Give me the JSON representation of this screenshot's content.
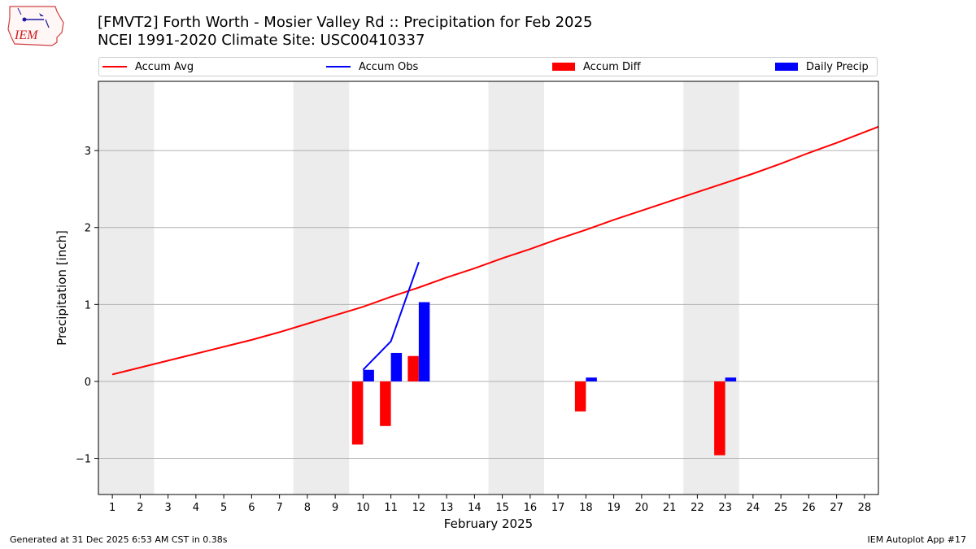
{
  "header": {
    "title_line1": "[FMVT2] Forth Worth - Mosier Valley Rd :: Precipitation for Feb 2025",
    "title_line2": "NCEI 1991-2020 Climate Site: USC00410337",
    "logo_text": "IEM"
  },
  "legend": {
    "items": [
      {
        "label": "Accum Avg",
        "kind": "line",
        "color": "#ff0000"
      },
      {
        "label": "Accum Obs",
        "kind": "line",
        "color": "#0000ff"
      },
      {
        "label": "Accum Diff",
        "kind": "box",
        "color": "#ff0000"
      },
      {
        "label": "Daily Precip",
        "kind": "box",
        "color": "#0000ff"
      }
    ]
  },
  "footer": {
    "left": "Generated at 31 Dec 2025 6:53 AM CST in 0.38s",
    "right": "IEM Autoplot App #17"
  },
  "chart_data": {
    "type": "bar",
    "xlabel": "February 2025",
    "ylabel": "Precipitation [inch]",
    "x": [
      1,
      2,
      3,
      4,
      5,
      6,
      7,
      8,
      9,
      10,
      11,
      12,
      13,
      14,
      15,
      16,
      17,
      18,
      19,
      20,
      21,
      22,
      23,
      24,
      25,
      26,
      27,
      28
    ],
    "xlim": [
      0.5,
      28.5
    ],
    "ylim": [
      -1.47,
      3.9
    ],
    "yticks": [
      -1,
      0,
      1,
      2,
      3
    ],
    "ytick_labels": [
      "−1",
      "0",
      "1",
      "2",
      "3"
    ],
    "grid": "horizontal",
    "legend_position": "top",
    "weekend_shading": [
      [
        0.5,
        2.5
      ],
      [
        7.5,
        9.5
      ],
      [
        14.5,
        16.5
      ],
      [
        21.5,
        23.5
      ]
    ],
    "series": [
      {
        "name": "Accum Avg",
        "kind": "line",
        "color": "#ff0000",
        "x": [
          1,
          2,
          3,
          4,
          5,
          6,
          7,
          8,
          9,
          10,
          11,
          12,
          13,
          14,
          15,
          16,
          17,
          18,
          19,
          20,
          21,
          22,
          23,
          24,
          25,
          26,
          27,
          28,
          28.5
        ],
        "values": [
          0.09,
          0.18,
          0.27,
          0.36,
          0.45,
          0.54,
          0.64,
          0.75,
          0.86,
          0.97,
          1.1,
          1.22,
          1.35,
          1.47,
          1.6,
          1.72,
          1.85,
          1.97,
          2.1,
          2.22,
          2.34,
          2.46,
          2.58,
          2.7,
          2.83,
          2.97,
          3.1,
          3.24,
          3.31
        ]
      },
      {
        "name": "Accum Obs",
        "kind": "line",
        "color": "#0000ff",
        "x": [
          10,
          11,
          12
        ],
        "values": [
          0.15,
          0.52,
          1.55
        ]
      },
      {
        "name": "Accum Diff",
        "kind": "bar",
        "color": "#ff0000",
        "x": [
          10,
          11,
          12,
          18,
          23
        ],
        "values": [
          -0.82,
          -0.58,
          0.33,
          -0.39,
          -0.96
        ]
      },
      {
        "name": "Daily Precip",
        "kind": "bar",
        "color": "#0000ff",
        "x": [
          10,
          11,
          12,
          18,
          23
        ],
        "values": [
          0.15,
          0.37,
          1.03,
          0.05,
          0.05
        ]
      }
    ]
  }
}
